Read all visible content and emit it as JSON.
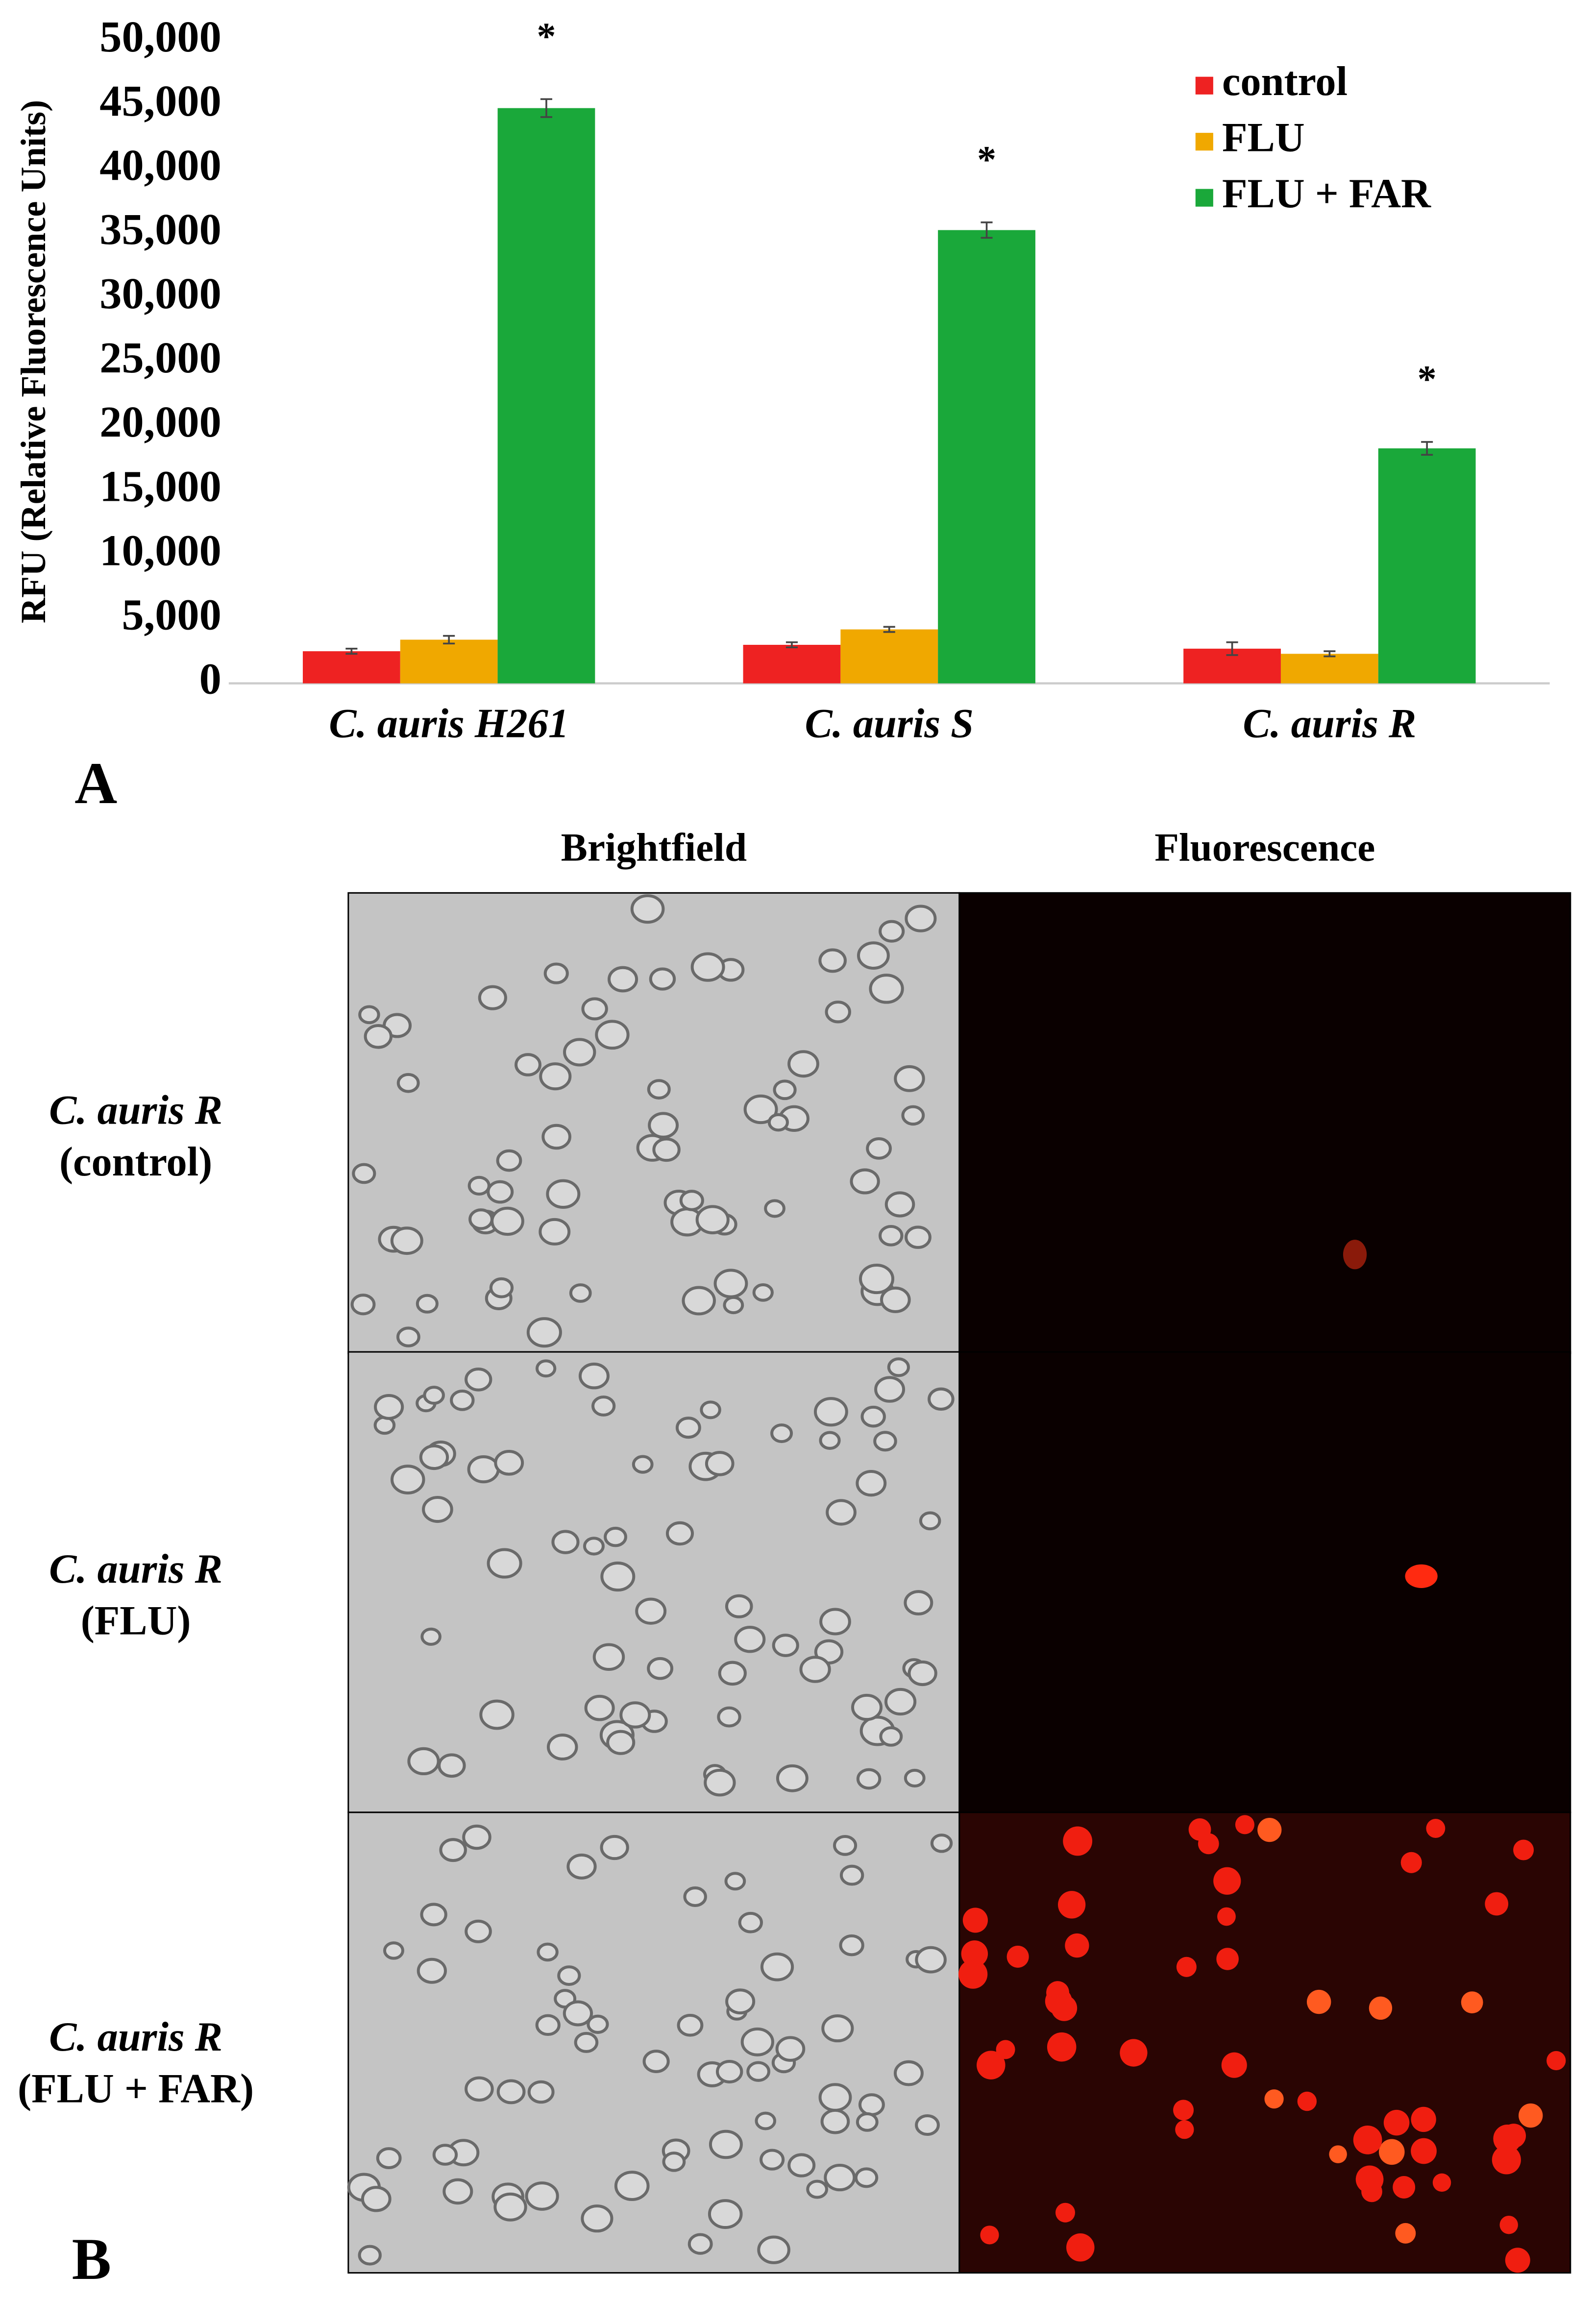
{
  "chart_data": {
    "type": "bar",
    "y_axis_label": "RFU (Relative Fluorescence Units)",
    "categories": [
      "C. auris H261",
      "C. auris S",
      "C. auris R"
    ],
    "series": [
      {
        "name": "control",
        "color": "#ee2222",
        "values": [
          2500,
          3000,
          2700
        ],
        "errors": [
          200,
          200,
          500
        ]
      },
      {
        "name": "FLU",
        "color": "#f0a800",
        "values": [
          3400,
          4200,
          2300
        ],
        "errors": [
          300,
          200,
          200
        ]
      },
      {
        "name": "FLU + FAR",
        "color": "#1aa83a",
        "values": [
          44800,
          35300,
          18300
        ],
        "errors": [
          700,
          600,
          500
        ]
      }
    ],
    "significance": [
      "*",
      "*",
      "*"
    ],
    "ylim": [
      0,
      50000
    ],
    "yticks": [
      0,
      {
        "value": 5000,
        "label": "5,000"
      },
      {
        "value": 10000,
        "label": "10,000"
      },
      {
        "value": 15000,
        "label": "15,000"
      },
      {
        "value": 20000,
        "label": "20,000"
      },
      {
        "value": 25000,
        "label": "25,000"
      },
      {
        "value": 30000,
        "label": "30,000"
      },
      {
        "value": 35000,
        "label": "35,000"
      },
      {
        "value": 40000,
        "label": "40,000"
      },
      {
        "value": 45000,
        "label": "45,000"
      },
      {
        "value": 50000,
        "label": "50,000"
      }
    ],
    "legend": "upper right",
    "panel_label": "A"
  },
  "micrographs": {
    "panel_label": "B",
    "columns": [
      "Brightfield",
      "Fluorescence"
    ],
    "rows": [
      {
        "strain": "C. auris R",
        "condition": "(control)"
      },
      {
        "strain": "C. auris R",
        "condition": "(FLU)"
      },
      {
        "strain": "C. auris R",
        "condition": "(FLU + FAR)"
      }
    ]
  }
}
